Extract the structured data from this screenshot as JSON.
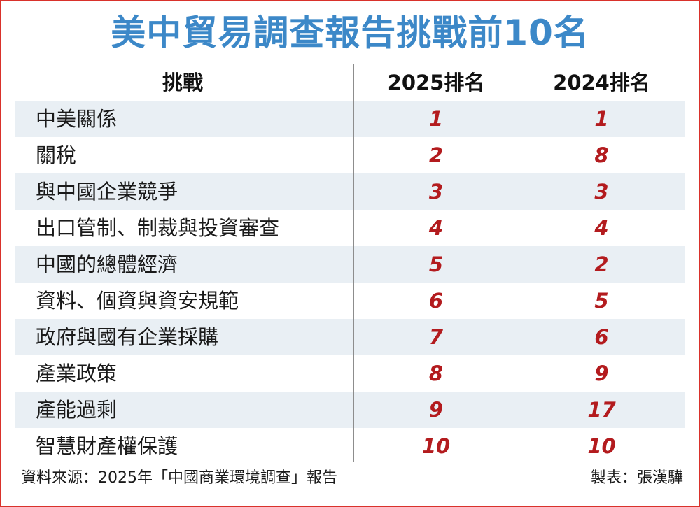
{
  "title": "美中貿易調查報告挑戰前10名",
  "table": {
    "headers": [
      "挑戰",
      "2025排名",
      "2024排名"
    ],
    "rows": [
      {
        "challenge": "中美關係",
        "rank_2025": "1",
        "rank_2024": "1"
      },
      {
        "challenge": "關稅",
        "rank_2025": "2",
        "rank_2024": "8"
      },
      {
        "challenge": "與中國企業競爭",
        "rank_2025": "3",
        "rank_2024": "3"
      },
      {
        "challenge": "出口管制、制裁與投資審查",
        "rank_2025": "4",
        "rank_2024": "4"
      },
      {
        "challenge": "中國的總體經濟",
        "rank_2025": "5",
        "rank_2024": "2"
      },
      {
        "challenge": "資料、個資與資安規範",
        "rank_2025": "6",
        "rank_2024": "5"
      },
      {
        "challenge": "政府與國有企業採購",
        "rank_2025": "7",
        "rank_2024": "6"
      },
      {
        "challenge": "產業政策",
        "rank_2025": "8",
        "rank_2024": "9"
      },
      {
        "challenge": "產能過剩",
        "rank_2025": "9",
        "rank_2024": "17"
      },
      {
        "challenge": "智慧財產權保護",
        "rank_2025": "10",
        "rank_2024": "10"
      }
    ]
  },
  "footer": {
    "source": "資料來源：2025年「中國商業環境調查」報告",
    "credit": "製表：張漢驊"
  },
  "colors": {
    "title": "#3c88c8",
    "rank": "#b31b1e",
    "border": "#d9322b",
    "row_shade": "#e9eff4"
  }
}
